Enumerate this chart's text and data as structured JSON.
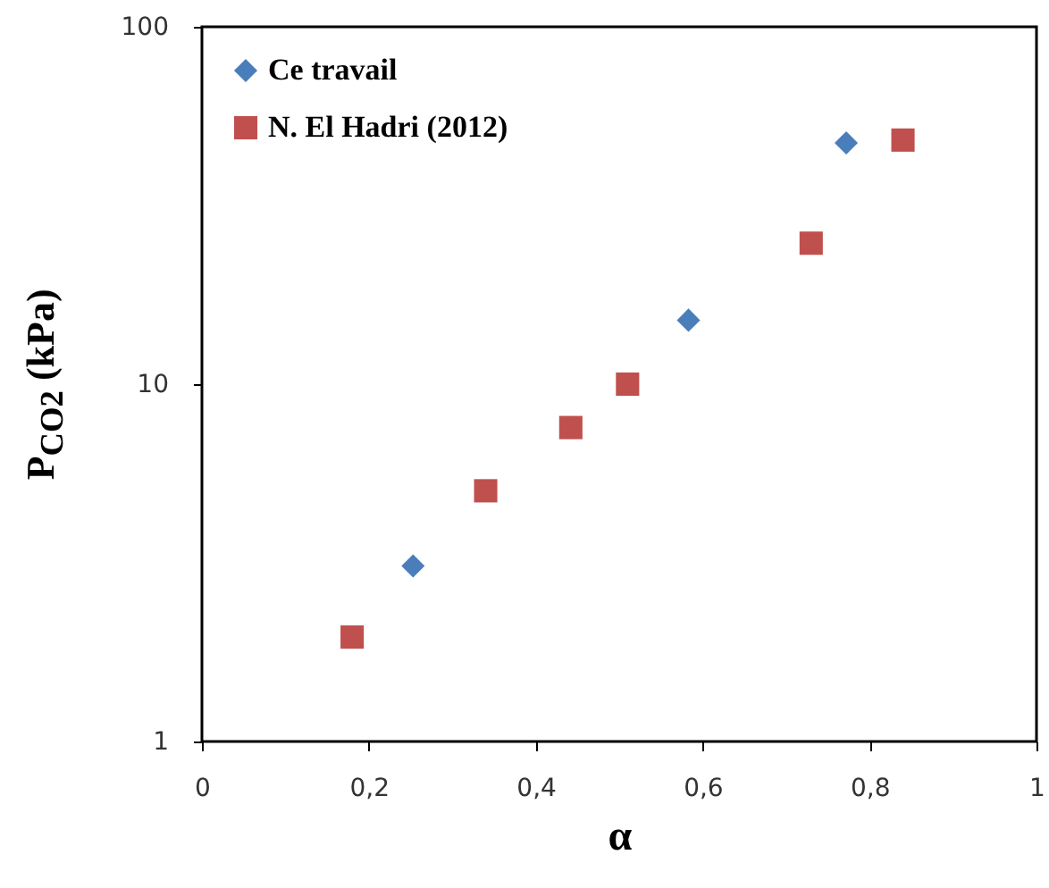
{
  "chart_data": {
    "type": "scatter",
    "xlabel": "α",
    "ylabel": "P$_{CO2}$ (kPa)",
    "log": "y",
    "legend": "top left",
    "grid": false,
    "xlim": [
      0,
      1
    ],
    "xticks": [
      0,
      {
        "value": 0.2,
        "label": "0,2"
      },
      {
        "value": 0.4,
        "label": "0,4"
      },
      {
        "value": 0.6,
        "label": "0,6"
      },
      {
        "value": 0.8,
        "label": "0,8"
      },
      1
    ],
    "ylim": [
      1,
      100
    ],
    "yticks": [
      1,
      10,
      100
    ],
    "series": [
      {
        "name": "Ce travail",
        "color": "#4a7ebb",
        "marker": "diamond",
        "x": [
          0.253,
          0.583,
          0.772
        ],
        "values": [
          3.1,
          15.1,
          47.3
        ]
      },
      {
        "name": "N. El Hadri (2012)",
        "color": "#c0504d",
        "marker": "square",
        "x": [
          0.18,
          0.34,
          0.442,
          0.51,
          0.73,
          0.84
        ],
        "values": [
          1.96,
          5.03,
          7.56,
          10.0,
          24.8,
          48.2
        ]
      }
    ]
  }
}
